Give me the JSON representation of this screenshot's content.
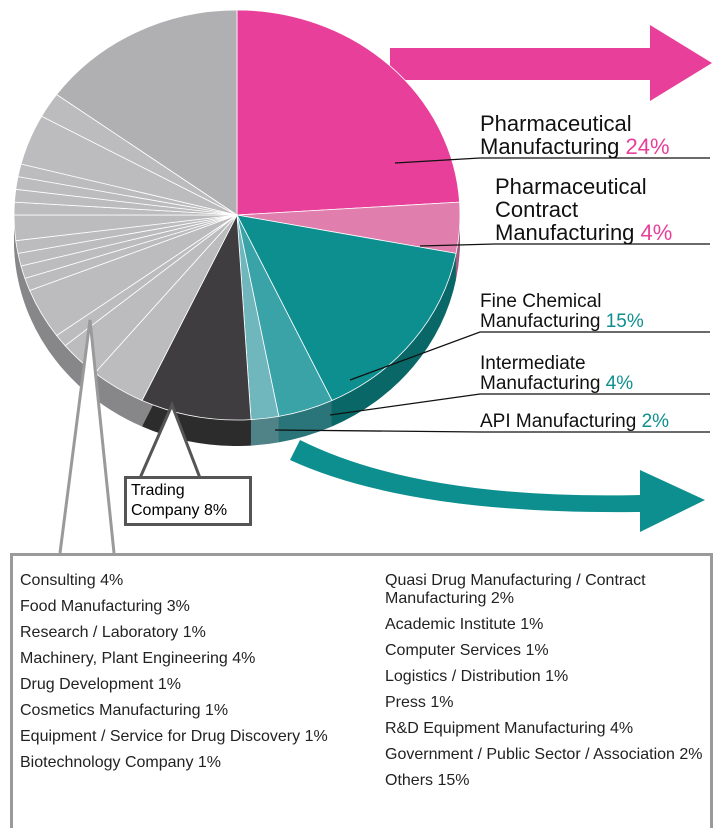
{
  "chart_data": {
    "type": "pie",
    "categories": [
      "Pharmaceutical Manufacturing",
      "Pharmaceutical Contract Manufacturing",
      "Fine Chemical Manufacturing",
      "Intermediate Manufacturing",
      "API Manufacturing",
      "Trading Company",
      "Consulting",
      "Food Manufacturing",
      "Research / Laboratory",
      "Machinery, Plant Engineering",
      "Drug Development",
      "Cosmetics Manufacturing",
      "Equipment / Service for Drug Discovery",
      "Biotechnology Company",
      "Quasi Drug Manufacturing / Contract Manufacturing",
      "Academic Institute",
      "Computer Services",
      "Logistics / Distribution",
      "Press",
      "R&D Equipment Manufacturing",
      "Government / Public Sector / Association",
      "Others"
    ],
    "values": [
      24,
      4,
      15,
      4,
      2,
      8,
      4,
      3,
      1,
      4,
      1,
      1,
      1,
      1,
      2,
      1,
      1,
      1,
      1,
      4,
      2,
      15
    ],
    "value_labels": [
      "24%",
      "4%",
      "15%",
      "4%",
      "2%",
      "8%",
      "4%",
      "3%",
      "1%",
      "4%",
      "1%",
      "1%",
      "1%",
      "1%",
      "2%",
      "1%",
      "1%",
      "1%",
      "1%",
      "4%",
      "2%",
      "15%"
    ],
    "colors": [
      "#e8409a",
      "#e07fae",
      "#0e8f8f",
      "#3aa3a8",
      "#6fb6bd",
      "#3f3d3f",
      "#bcbcbe",
      "#bcbcbe",
      "#bcbcbe",
      "#bcbcbe",
      "#bcbcbe",
      "#bcbcbe",
      "#bcbcbe",
      "#bcbcbe",
      "#bcbcbe",
      "#bcbcbe",
      "#bcbcbe",
      "#bcbcbe",
      "#bcbcbe",
      "#bcbcbe",
      "#bcbcbe",
      "#b0b0b2"
    ]
  }
}
